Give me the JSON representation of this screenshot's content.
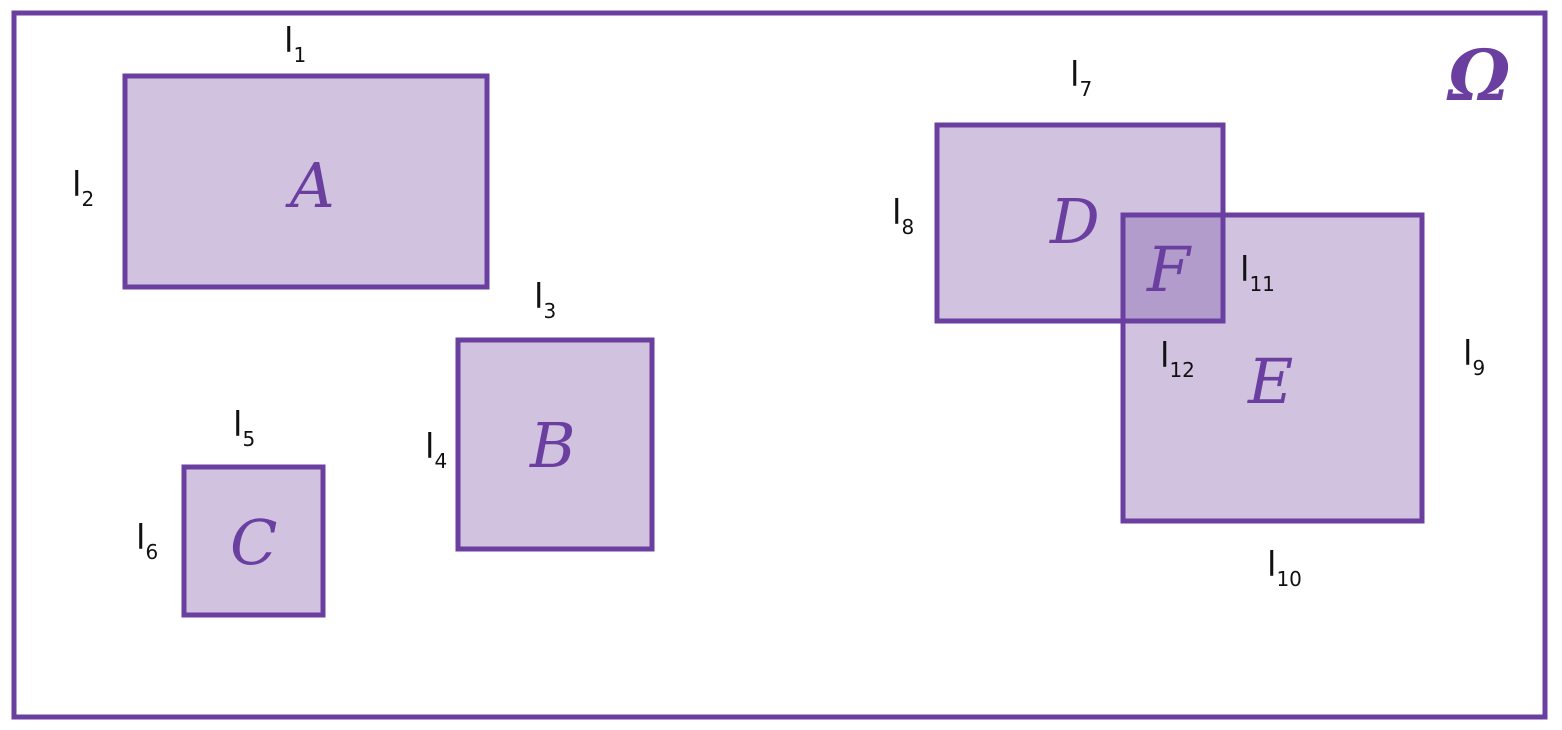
{
  "colors": {
    "stroke": "#6a3fa0",
    "fill": "#d1c3df",
    "overlap_fill": "#b19ccc",
    "text": "#111111"
  },
  "universe_label": "Ω",
  "regions": {
    "A": "A",
    "B": "B",
    "C": "C",
    "D": "D",
    "E": "E",
    "F": "F"
  },
  "lengths": {
    "l1": {
      "base": "l",
      "sub": "1"
    },
    "l2": {
      "base": "l",
      "sub": "2"
    },
    "l3": {
      "base": "l",
      "sub": "3"
    },
    "l4": {
      "base": "l",
      "sub": "4"
    },
    "l5": {
      "base": "l",
      "sub": "5"
    },
    "l6": {
      "base": "l",
      "sub": "6"
    },
    "l7": {
      "base": "l",
      "sub": "7"
    },
    "l8": {
      "base": "l",
      "sub": "8"
    },
    "l9": {
      "base": "l",
      "sub": "9"
    },
    "l10": {
      "base": "l",
      "sub": "10"
    },
    "l11": {
      "base": "l",
      "sub": "11"
    },
    "l12": {
      "base": "l",
      "sub": "12"
    }
  }
}
